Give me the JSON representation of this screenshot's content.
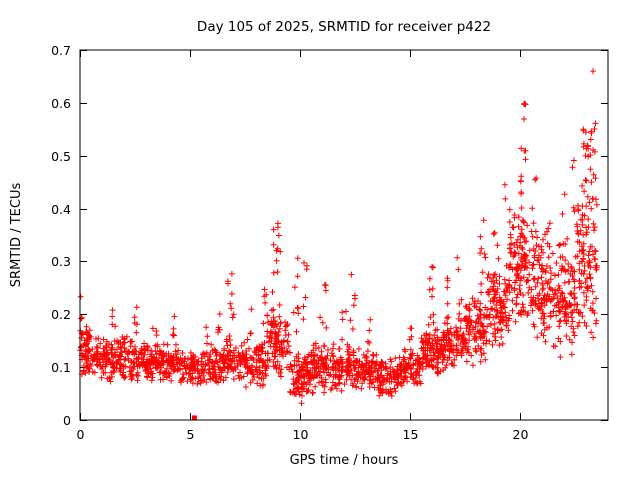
{
  "chart_data": {
    "type": "scatter",
    "title": "Day 105 of 2025, SRMTID for receiver p422",
    "xlabel": "GPS time / hours",
    "ylabel": "SRMTID / TECUs",
    "xlim": [
      0,
      24
    ],
    "ylim": [
      0,
      0.7
    ],
    "xticks": [
      {
        "v": 0,
        "label": "0"
      },
      {
        "v": 5,
        "label": "5"
      },
      {
        "v": 10,
        "label": "10"
      },
      {
        "v": 15,
        "label": "15"
      },
      {
        "v": 20,
        "label": "20"
      }
    ],
    "yticks": [
      {
        "v": 0.0,
        "label": "0"
      },
      {
        "v": 0.1,
        "label": "0.1"
      },
      {
        "v": 0.2,
        "label": "0.2"
      },
      {
        "v": 0.3,
        "label": "0.3"
      },
      {
        "v": 0.4,
        "label": "0.4"
      },
      {
        "v": 0.5,
        "label": "0.5"
      },
      {
        "v": 0.6,
        "label": "0.6"
      },
      {
        "v": 0.7,
        "label": "0.7"
      }
    ],
    "grid": false,
    "legend": "none",
    "marker": "plus",
    "marker_color": "#ff0000",
    "marker_size": 7,
    "seed": 7,
    "band_format": [
      "x_start",
      "x_end",
      "count",
      "y_min",
      "y_max"
    ],
    "bands": [
      [
        0.0,
        0.5,
        60,
        0.08,
        0.18
      ],
      [
        0.5,
        1.5,
        90,
        0.07,
        0.16
      ],
      [
        1.5,
        2.5,
        90,
        0.07,
        0.16
      ],
      [
        2.5,
        3.5,
        90,
        0.07,
        0.15
      ],
      [
        3.5,
        4.5,
        90,
        0.07,
        0.15
      ],
      [
        4.5,
        5.5,
        80,
        0.06,
        0.14
      ],
      [
        5.5,
        6.5,
        80,
        0.06,
        0.15
      ],
      [
        6.5,
        7.5,
        85,
        0.07,
        0.16
      ],
      [
        7.5,
        8.5,
        85,
        0.06,
        0.15
      ],
      [
        8.5,
        9.5,
        100,
        0.08,
        0.22
      ],
      [
        9.5,
        10.5,
        100,
        0.03,
        0.14
      ],
      [
        10.5,
        11.5,
        90,
        0.05,
        0.15
      ],
      [
        11.5,
        12.5,
        90,
        0.05,
        0.15
      ],
      [
        12.5,
        13.5,
        90,
        0.05,
        0.14
      ],
      [
        13.5,
        14.5,
        90,
        0.04,
        0.12
      ],
      [
        14.5,
        15.5,
        90,
        0.06,
        0.14
      ],
      [
        15.5,
        16.5,
        95,
        0.08,
        0.18
      ],
      [
        16.5,
        17.5,
        95,
        0.09,
        0.2
      ],
      [
        17.5,
        18.5,
        95,
        0.1,
        0.24
      ],
      [
        18.5,
        19.5,
        100,
        0.12,
        0.3
      ],
      [
        19.5,
        20.5,
        110,
        0.15,
        0.4
      ],
      [
        20.5,
        21.5,
        100,
        0.14,
        0.38
      ],
      [
        21.5,
        22.5,
        100,
        0.1,
        0.35
      ],
      [
        22.5,
        23.5,
        110,
        0.15,
        0.45
      ]
    ],
    "cluster_format": [
      "x_start",
      "x_end",
      "count",
      "y_min",
      "y_max"
    ],
    "clusters": [
      [
        0.0,
        0.15,
        4,
        0.15,
        0.24
      ],
      [
        1.4,
        1.6,
        4,
        0.16,
        0.21
      ],
      [
        2.4,
        2.6,
        5,
        0.16,
        0.22
      ],
      [
        3.3,
        3.5,
        3,
        0.15,
        0.19
      ],
      [
        4.1,
        4.35,
        5,
        0.15,
        0.21
      ],
      [
        5.6,
        5.8,
        3,
        0.14,
        0.18
      ],
      [
        6.25,
        6.45,
        5,
        0.16,
        0.25
      ],
      [
        6.7,
        7.0,
        8,
        0.17,
        0.3
      ],
      [
        7.6,
        7.8,
        4,
        0.15,
        0.22
      ],
      [
        8.3,
        8.5,
        5,
        0.16,
        0.25
      ],
      [
        8.75,
        9.15,
        14,
        0.18,
        0.37
      ],
      [
        9.7,
        9.95,
        8,
        0.15,
        0.33
      ],
      [
        10.15,
        10.35,
        6,
        0.15,
        0.3
      ],
      [
        10.9,
        11.2,
        6,
        0.15,
        0.26
      ],
      [
        11.9,
        12.1,
        4,
        0.15,
        0.22
      ],
      [
        12.25,
        12.5,
        6,
        0.16,
        0.28
      ],
      [
        13.0,
        13.2,
        4,
        0.14,
        0.2
      ],
      [
        14.9,
        15.1,
        4,
        0.13,
        0.18
      ],
      [
        15.85,
        16.1,
        9,
        0.18,
        0.29
      ],
      [
        16.5,
        16.8,
        6,
        0.18,
        0.28
      ],
      [
        17.1,
        17.35,
        6,
        0.18,
        0.31
      ],
      [
        18.15,
        18.45,
        9,
        0.2,
        0.38
      ],
      [
        18.8,
        19.1,
        8,
        0.22,
        0.37
      ],
      [
        19.3,
        19.6,
        8,
        0.25,
        0.45
      ],
      [
        19.9,
        20.1,
        10,
        0.3,
        0.52
      ],
      [
        20.15,
        20.35,
        10,
        0.32,
        0.6
      ],
      [
        20.5,
        20.8,
        8,
        0.25,
        0.46
      ],
      [
        21.1,
        21.4,
        7,
        0.22,
        0.42
      ],
      [
        21.8,
        22.1,
        7,
        0.2,
        0.45
      ],
      [
        22.3,
        22.55,
        8,
        0.25,
        0.5
      ],
      [
        22.8,
        23.05,
        12,
        0.35,
        0.55
      ],
      [
        23.05,
        23.25,
        12,
        0.4,
        0.57
      ],
      [
        23.3,
        23.45,
        6,
        0.45,
        0.565
      ]
    ],
    "outlier_points": [
      [
        23.32,
        0.66
      ],
      [
        20.25,
        0.597
      ],
      [
        9.0,
        0.372
      ],
      [
        18.35,
        0.378
      ],
      [
        16.0,
        0.29
      ]
    ],
    "square_point": {
      "x": 5.2,
      "y": 0.004,
      "color": "#ff0000"
    }
  }
}
